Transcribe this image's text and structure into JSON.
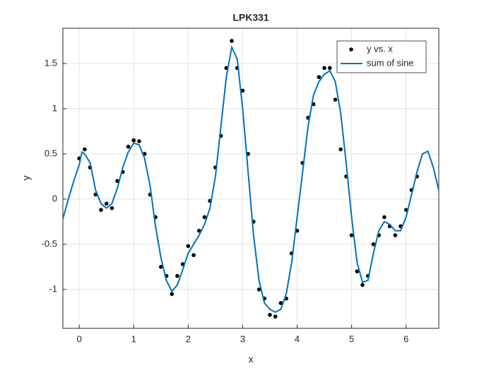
{
  "chart_data": {
    "type": "scatter",
    "title": "LPK331",
    "x_label": "x",
    "y_label": "y",
    "xlim": [
      -0.3,
      6.6
    ],
    "ylim": [
      -1.43,
      1.89
    ],
    "xticks": [
      0,
      1,
      2,
      3,
      4,
      5,
      6
    ],
    "yticks": [
      -1,
      -0.5,
      0,
      0.5,
      1,
      1.5
    ],
    "grid": true,
    "legend_position": "northeast",
    "series": [
      {
        "name": "y vs. x",
        "color": "#000000",
        "mode": "markers",
        "x": [
          0.0,
          0.1,
          0.2,
          0.3,
          0.4,
          0.5,
          0.6,
          0.7,
          0.8,
          0.9,
          1.0,
          1.1,
          1.2,
          1.3,
          1.4,
          1.5,
          1.6,
          1.7,
          1.8,
          1.9,
          2.0,
          2.1,
          2.2,
          2.3,
          2.4,
          2.5,
          2.6,
          2.7,
          2.8,
          2.9,
          3.0,
          3.1,
          3.2,
          3.3,
          3.4,
          3.5,
          3.6,
          3.7,
          3.8,
          3.9,
          4.0,
          4.1,
          4.2,
          4.3,
          4.4,
          4.5,
          4.6,
          4.7,
          4.8,
          4.9,
          5.0,
          5.1,
          5.2,
          5.3,
          5.4,
          5.5,
          5.6,
          5.7,
          5.8,
          5.9,
          6.0,
          6.1,
          6.2
        ],
        "values": [
          0.45,
          0.55,
          0.35,
          0.05,
          -0.12,
          -0.05,
          -0.1,
          0.2,
          0.3,
          0.58,
          0.65,
          0.64,
          0.5,
          0.05,
          -0.2,
          -0.75,
          -0.85,
          -1.05,
          -0.85,
          -0.72,
          -0.52,
          -0.62,
          -0.35,
          -0.2,
          -0.02,
          0.35,
          0.7,
          1.45,
          1.75,
          1.45,
          1.2,
          0.5,
          -0.25,
          -1.0,
          -1.1,
          -1.28,
          -1.3,
          -1.15,
          -1.1,
          -0.6,
          -0.35,
          0.4,
          0.9,
          1.05,
          1.35,
          1.45,
          1.45,
          1.1,
          0.55,
          0.25,
          -0.4,
          -0.8,
          -0.95,
          -0.85,
          -0.5,
          -0.4,
          -0.2,
          -0.3,
          -0.4,
          -0.3,
          -0.12,
          0.1,
          0.25
        ]
      },
      {
        "name": "sum of sine",
        "color": "#0072BD",
        "mode": "line",
        "x": [
          -0.3,
          -0.2,
          -0.1,
          0,
          0.05,
          0.1,
          0.2,
          0.3,
          0.4,
          0.5,
          0.6,
          0.7,
          0.8,
          0.9,
          1.0,
          1.1,
          1.2,
          1.3,
          1.4,
          1.5,
          1.6,
          1.7,
          1.8,
          1.9,
          2.0,
          2.1,
          2.2,
          2.3,
          2.4,
          2.5,
          2.6,
          2.7,
          2.8,
          2.9,
          3.0,
          3.1,
          3.2,
          3.3,
          3.4,
          3.5,
          3.6,
          3.7,
          3.8,
          3.9,
          4.0,
          4.1,
          4.2,
          4.3,
          4.4,
          4.5,
          4.6,
          4.7,
          4.8,
          4.9,
          5.0,
          5.1,
          5.2,
          5.3,
          5.4,
          5.5,
          5.6,
          5.7,
          5.8,
          5.9,
          6.0,
          6.1,
          6.2,
          6.3,
          6.4,
          6.5,
          6.6
        ],
        "values": [
          -0.22,
          0.0,
          0.2,
          0.38,
          0.52,
          0.5,
          0.4,
          0.1,
          -0.05,
          -0.1,
          -0.05,
          0.12,
          0.35,
          0.52,
          0.62,
          0.6,
          0.45,
          0.15,
          -0.3,
          -0.65,
          -0.9,
          -1.02,
          -0.95,
          -0.78,
          -0.6,
          -0.5,
          -0.4,
          -0.28,
          -0.1,
          0.25,
          0.8,
          1.35,
          1.68,
          1.55,
          1.0,
          0.3,
          -0.4,
          -0.9,
          -1.15,
          -1.22,
          -1.25,
          -1.22,
          -1.05,
          -0.7,
          -0.2,
          0.3,
          0.8,
          1.15,
          1.3,
          1.38,
          1.42,
          1.3,
          0.95,
          0.4,
          -0.2,
          -0.7,
          -0.92,
          -0.9,
          -0.6,
          -0.35,
          -0.25,
          -0.28,
          -0.35,
          -0.35,
          -0.2,
          0.05,
          0.3,
          0.5,
          0.53,
          0.35,
          0.1
        ]
      }
    ]
  }
}
